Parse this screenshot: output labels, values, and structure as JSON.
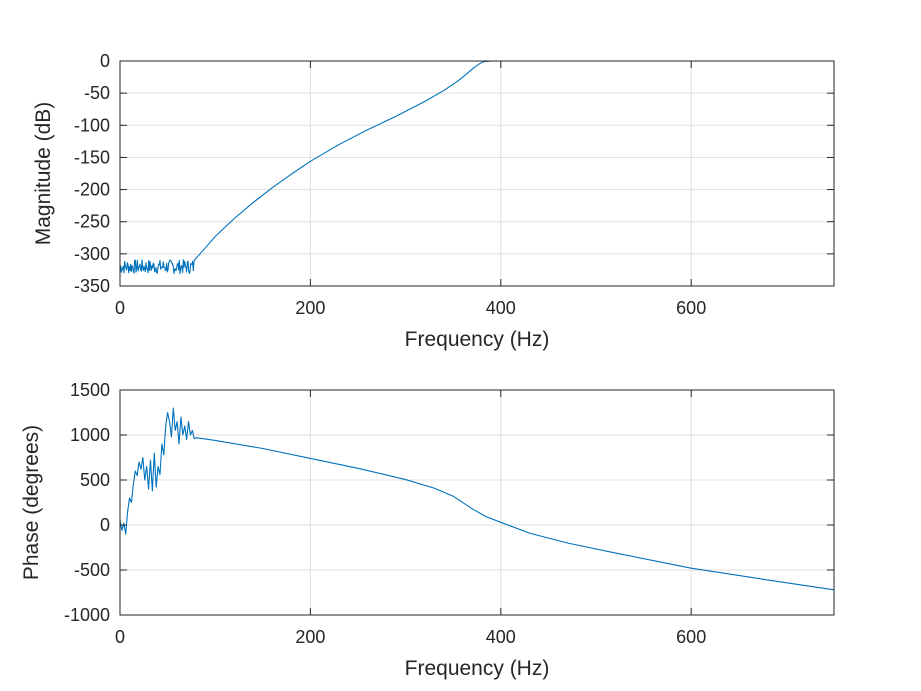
{
  "chart_data": [
    {
      "type": "line",
      "id": "magnitude",
      "title": "",
      "xlabel": "Frequency (Hz)",
      "ylabel": "Magnitude (dB)",
      "xlim": [
        0,
        750
      ],
      "ylim": [
        -350,
        0
      ],
      "grid": true,
      "xticks": [
        0,
        200,
        400,
        600
      ],
      "xtick_labels": [
        "0",
        "200",
        "400",
        "600"
      ],
      "yticks": [
        0,
        -50,
        -100,
        -150,
        -200,
        -250,
        -300,
        -350
      ],
      "ytick_labels": [
        "0",
        "-50",
        "-100",
        "-150",
        "-200",
        "-250",
        "-300",
        "-350"
      ],
      "series": [
        {
          "name": "magnitude",
          "color": "#0072bd",
          "noise": {
            "x_start": 0,
            "x_end": 78,
            "base": -320,
            "amplitude": 11,
            "seed": 7
          },
          "x": [
            78,
            90,
            100,
            120,
            140,
            160,
            180,
            200,
            230,
            260,
            290,
            320,
            340,
            355,
            365,
            372,
            378,
            382,
            390,
            420,
            500,
            600,
            750
          ],
          "y": [
            -310,
            -290,
            -273,
            -245,
            -220,
            -197,
            -176,
            -156,
            -130,
            -107,
            -86,
            -63,
            -46,
            -31,
            -19,
            -10,
            -4,
            -1,
            0,
            0,
            0,
            0,
            0
          ]
        }
      ]
    },
    {
      "type": "line",
      "id": "phase",
      "title": "",
      "xlabel": "Frequency (Hz)",
      "ylabel": "Phase (degrees)",
      "xlim": [
        0,
        750
      ],
      "ylim": [
        -1000,
        1500
      ],
      "grid": true,
      "xticks": [
        0,
        200,
        400,
        600
      ],
      "xtick_labels": [
        "0",
        "200",
        "400",
        "600"
      ],
      "yticks": [
        1500,
        1000,
        500,
        0,
        -500,
        -1000
      ],
      "ytick_labels": [
        "1500",
        "1000",
        "500",
        "0",
        "-500",
        "-1000"
      ],
      "series": [
        {
          "name": "phase",
          "color": "#0072bd",
          "x": [
            0,
            2,
            4,
            6,
            8,
            10,
            12,
            14,
            16,
            18,
            20,
            22,
            24,
            26,
            28,
            30,
            32,
            34,
            36,
            38,
            40,
            42,
            44,
            46,
            48,
            50,
            52,
            54,
            56,
            58,
            60,
            62,
            64,
            66,
            68,
            70,
            72,
            74,
            76,
            78,
            80,
            100,
            150,
            200,
            250,
            300,
            330,
            350,
            370,
            385,
            400,
            430,
            470,
            520,
            600,
            680,
            750
          ],
          "y": [
            50,
            -60,
            20,
            -100,
            150,
            300,
            250,
            450,
            600,
            550,
            700,
            620,
            750,
            500,
            650,
            400,
            720,
            380,
            800,
            420,
            650,
            560,
            900,
            780,
            1100,
            1250,
            1150,
            980,
            1300,
            1050,
            1150,
            900,
            1200,
            1000,
            1100,
            950,
            1150,
            1000,
            1050,
            960,
            970,
            940,
            850,
            740,
            630,
            505,
            410,
            320,
            180,
            90,
            30,
            -90,
            -200,
            -310,
            -480,
            -610,
            -720
          ]
        }
      ]
    }
  ]
}
